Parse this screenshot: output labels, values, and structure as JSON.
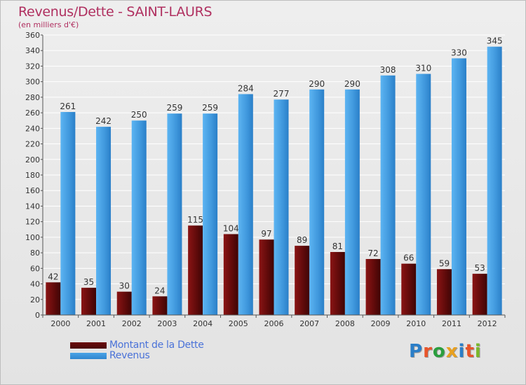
{
  "title": "Revenus/Dette - SAINT-LAURS",
  "subtitle": "(en milliers d'€)",
  "logo": {
    "text": "Proxiti",
    "colors": [
      "#2a7ec8",
      "#e8542a",
      "#2a9e3e",
      "#e8a020",
      "#2a7ec8",
      "#e8542a",
      "#7ab82a"
    ]
  },
  "colors": {
    "dette": "#6b0d0d",
    "revenus": "#4aa3e6"
  },
  "chart_data": {
    "type": "bar",
    "categories": [
      "2000",
      "2001",
      "2002",
      "2003",
      "2004",
      "2005",
      "2006",
      "2007",
      "2008",
      "2009",
      "2010",
      "2011",
      "2012"
    ],
    "series": [
      {
        "name": "Montant de la Dette",
        "values": [
          42,
          35,
          30,
          24,
          115,
          104,
          97,
          89,
          81,
          72,
          66,
          59,
          53
        ]
      },
      {
        "name": "Revenus",
        "values": [
          261,
          242,
          250,
          259,
          259,
          284,
          277,
          290,
          290,
          308,
          310,
          330,
          345
        ]
      }
    ],
    "ylim": [
      0,
      360
    ],
    "ytick_step": 20,
    "grid": true,
    "legend_position": "bottom-left"
  }
}
